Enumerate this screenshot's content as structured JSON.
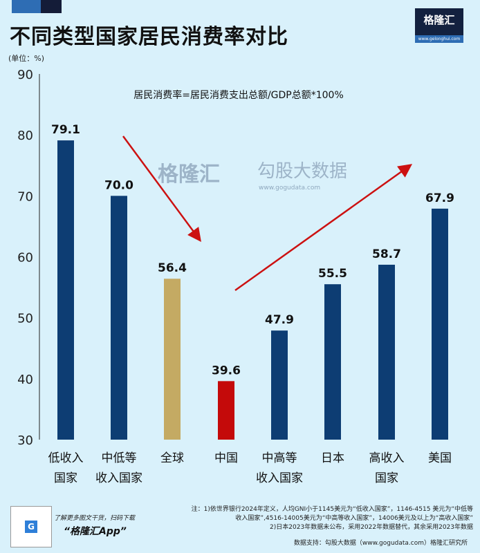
{
  "title": "不同类型国家居民消费率对比",
  "logo": {
    "name": "格隆汇",
    "url": "www.gelonghui.com"
  },
  "unit": "(单位：%)",
  "watermark": {
    "left": "格隆汇",
    "right": "勾股大数据",
    "sub": "www.gogudata.com"
  },
  "chart_data": {
    "type": "bar",
    "title": "不同类型国家居民消费率对比",
    "annotation": "居民消费率=居民消费支出总额/GDP总额*100%",
    "ylabel": "(单位：%)",
    "ylim": [
      30,
      90
    ],
    "yticks": [
      30,
      40,
      50,
      60,
      70,
      80,
      90
    ],
    "grid": false,
    "categories": [
      [
        "低收入",
        "国家"
      ],
      [
        "中低等",
        "收入国家"
      ],
      [
        "全球"
      ],
      [
        "中国"
      ],
      [
        "中高等",
        "收入国家"
      ],
      [
        "日本"
      ],
      [
        "高收入",
        "国家"
      ],
      [
        "美国"
      ]
    ],
    "values": [
      79.1,
      70.0,
      56.4,
      39.6,
      47.9,
      55.5,
      58.7,
      67.9
    ],
    "value_labels": [
      "79.1",
      "70.0",
      "56.4",
      "39.6",
      "47.9",
      "55.5",
      "58.7",
      "67.9"
    ],
    "colors": [
      "#0d3d73",
      "#0d3d73",
      "#c4aa63",
      "#c40a0a",
      "#0d3d73",
      "#0d3d73",
      "#0d3d73",
      "#0d3d73"
    ],
    "arrows_color": "#cc1111"
  },
  "footer": {
    "promo_line": "了解更多图文干货，扫码下载",
    "promo_app": "“格隆汇App”",
    "notes": [
      "注：1)依世界银行2024年定义，人均GNI小于1145美元为“低收入国家”，1146-4515 美元为“中低等",
      "收入国家”,4516-14005美元为“中高等收入国家”，14006美元及以上为“高收入国家”",
      "2)日本2023年数据未公布，采用2022年数据替代，其余采用2023年数据"
    ],
    "source": "数据支持：勾股大数据（www.gogudata.com）格隆汇研究所"
  }
}
